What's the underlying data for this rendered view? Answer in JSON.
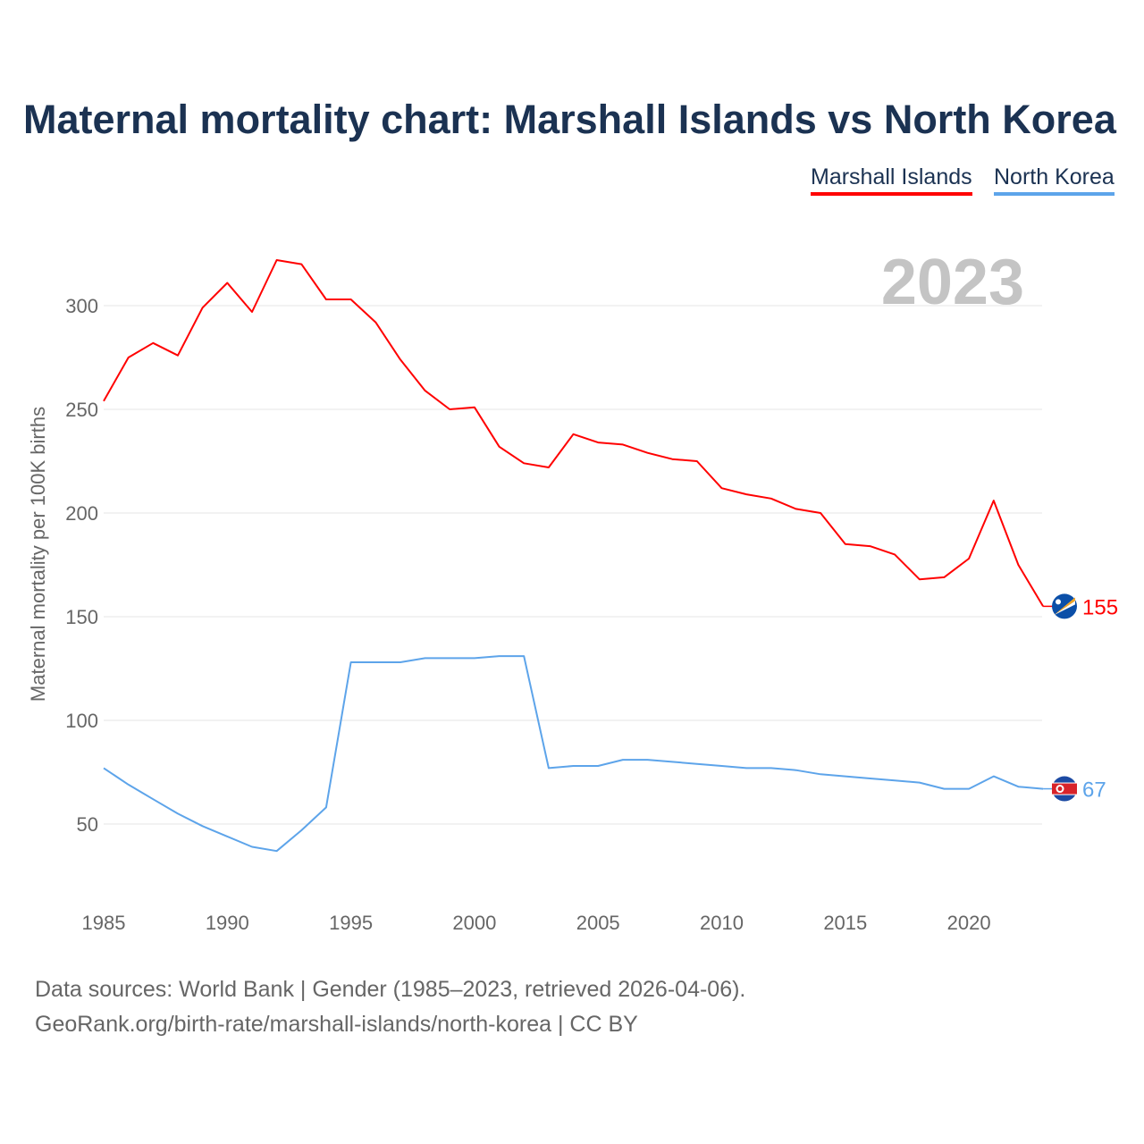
{
  "title": "Maternal mortality chart: Marshall Islands vs North Korea",
  "footer": {
    "line1": "Data sources: World Bank | Gender (1985–2023, retrieved 2026-04-06).",
    "line2": "GeoRank.org/birth-rate/marshall-islands/north-korea | CC BY"
  },
  "chart_data": {
    "type": "line",
    "title": "Maternal mortality chart: Marshall Islands vs North Korea",
    "ylabel": "Maternal mortality per 100K births",
    "xlabel": "",
    "year_label": "2023",
    "xlim": [
      1985,
      2023
    ],
    "ylim": [
      25,
      330
    ],
    "yticks": [
      "50",
      "100",
      "150",
      "200",
      "250",
      "300"
    ],
    "xticks": [
      "1985",
      "1990",
      "1995",
      "2000",
      "2005",
      "2010",
      "2015",
      "2020"
    ],
    "grid": true,
    "legend_position": "top-right",
    "x": [
      1985,
      1986,
      1987,
      1988,
      1989,
      1990,
      1991,
      1992,
      1993,
      1994,
      1995,
      1996,
      1997,
      1998,
      1999,
      2000,
      2001,
      2002,
      2003,
      2004,
      2005,
      2006,
      2007,
      2008,
      2009,
      2010,
      2011,
      2012,
      2013,
      2014,
      2015,
      2016,
      2017,
      2018,
      2019,
      2020,
      2021,
      2022,
      2023
    ],
    "series": [
      {
        "name": "Marshall Islands",
        "color": "#ff0000",
        "end_label": "155",
        "values": [
          254,
          275,
          282,
          276,
          299,
          311,
          297,
          322,
          320,
          303,
          303,
          292,
          274,
          259,
          250,
          251,
          232,
          224,
          222,
          238,
          234,
          233,
          229,
          226,
          225,
          212,
          209,
          207,
          202,
          200,
          185,
          184,
          180,
          168,
          169,
          178,
          206,
          175,
          155
        ]
      },
      {
        "name": "North Korea",
        "color": "#5da4ea",
        "end_label": "67",
        "values": [
          77,
          69,
          62,
          55,
          49,
          44,
          39,
          37,
          47,
          58,
          128,
          128,
          128,
          130,
          130,
          130,
          131,
          131,
          77,
          78,
          78,
          81,
          81,
          80,
          79,
          78,
          77,
          77,
          76,
          74,
          73,
          72,
          71,
          70,
          67,
          67,
          73,
          68,
          67
        ]
      }
    ]
  }
}
